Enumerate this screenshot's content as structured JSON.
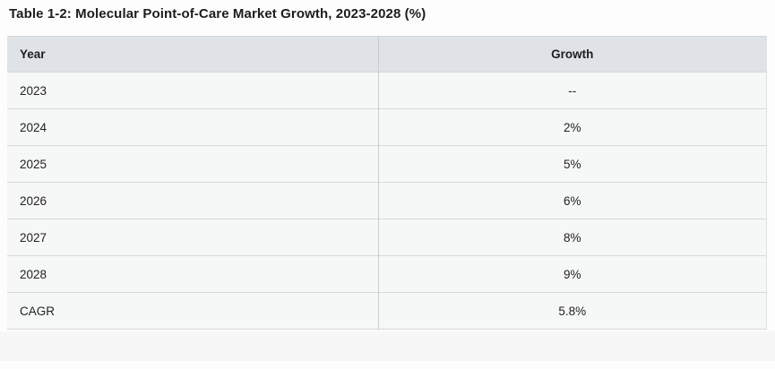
{
  "title": "Table 1-2: Molecular Point-of-Care Market Growth, 2023-2028 (%)",
  "table": {
    "columns": [
      "Year",
      "Growth"
    ],
    "rows": [
      {
        "year": "2023",
        "growth": "--"
      },
      {
        "year": "2024",
        "growth": "2%"
      },
      {
        "year": "2025",
        "growth": "5%"
      },
      {
        "year": "2026",
        "growth": "6%"
      },
      {
        "year": "2027",
        "growth": "8%"
      },
      {
        "year": "2028",
        "growth": "9%"
      },
      {
        "year": "CAGR",
        "growth": "5.8%"
      }
    ]
  },
  "colors": {
    "header_bg": "#dfe3e8",
    "row_bg": "#f6f7f7",
    "band_bg": "#f7f7f7",
    "page_bg": "#fdfdfd",
    "title_text": "#1d1d1d",
    "cell_text": "#222222"
  }
}
